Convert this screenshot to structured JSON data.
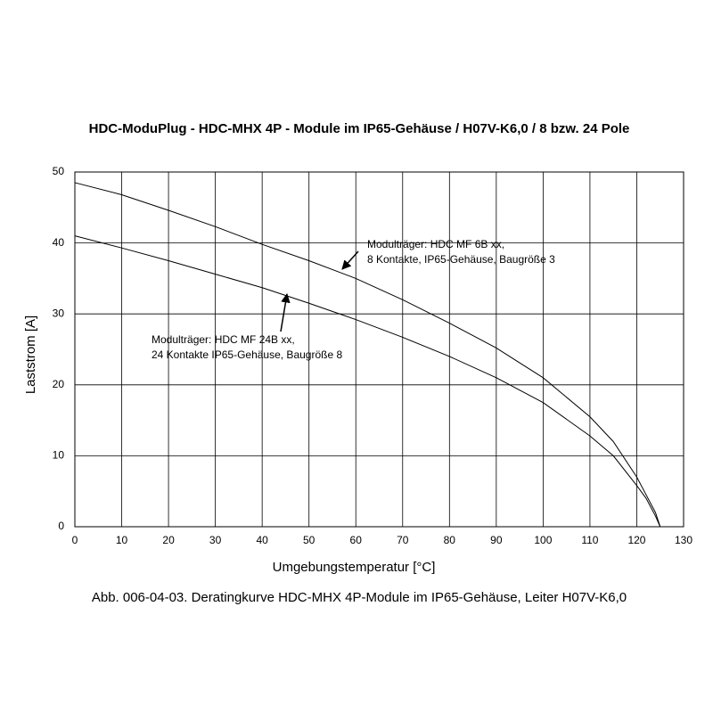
{
  "chart_data": {
    "type": "line",
    "title": "HDC-ModuPlug - HDC-MHX 4P - Module im IP65-Gehäuse / H07V-K6,0 / 8 bzw. 24 Pole",
    "xlabel": "Umgebungstemperatur [°C]",
    "ylabel": "Laststrom [A]",
    "caption": "Abb. 006-04-03. Deratingkurve HDC-MHX 4P-Module im IP65-Gehäuse, Leiter H07V-K6,0",
    "xlim": [
      0,
      130
    ],
    "ylim": [
      0,
      50
    ],
    "xticks": [
      0,
      10,
      20,
      30,
      40,
      50,
      60,
      70,
      80,
      90,
      100,
      110,
      120,
      130
    ],
    "yticks": [
      0,
      10,
      20,
      30,
      40,
      50
    ],
    "grid": true,
    "series": [
      {
        "color": "#000000",
        "x": [
          0,
          10,
          20,
          30,
          40,
          50,
          60,
          70,
          80,
          90,
          100,
          110,
          115,
          120,
          122,
          124,
          125
        ],
        "values": [
          48.5,
          46.8,
          44.6,
          42.3,
          39.8,
          37.5,
          35,
          32,
          28.7,
          25.2,
          21,
          15.5,
          12,
          7,
          4.5,
          2,
          0
        ]
      },
      {
        "color": "#000000",
        "x": [
          0,
          10,
          20,
          30,
          40,
          50,
          60,
          70,
          80,
          90,
          100,
          110,
          115,
          120,
          122,
          124,
          125
        ],
        "values": [
          41,
          39.3,
          37.5,
          35.6,
          33.7,
          31.5,
          29.2,
          26.7,
          24,
          21,
          17.5,
          12.8,
          10,
          5.8,
          4,
          1.5,
          0
        ]
      }
    ],
    "annotations": [
      {
        "lines": [
          "Modulträger: HDC MF 6B xx,",
          "8 Kontakte, IP65-Gehäuse, Baugröße 3"
        ]
      },
      {
        "lines": [
          "Modulträger: HDC MF 24B xx,",
          "24 Kontakte IP65-Gehäuse, Baugröße 8"
        ]
      }
    ]
  }
}
